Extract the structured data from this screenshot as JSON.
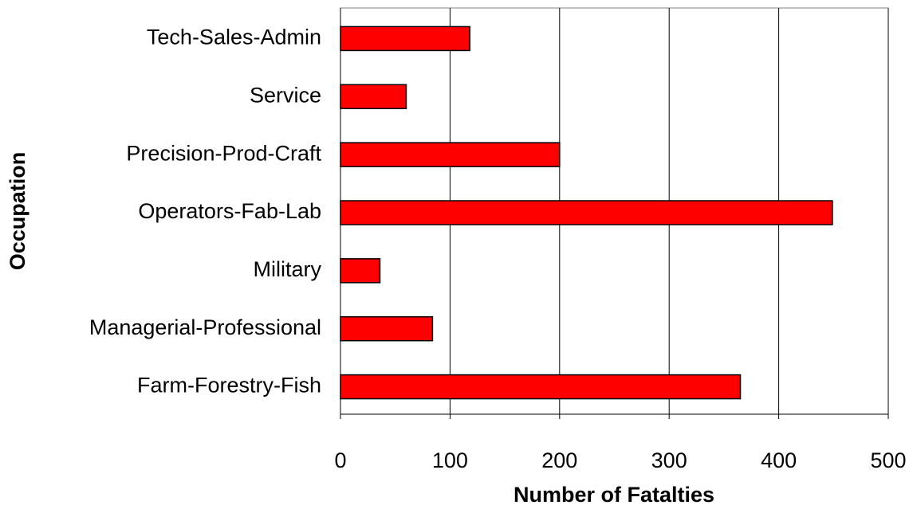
{
  "chart_data": {
    "type": "bar",
    "orientation": "horizontal",
    "x_label": "Number of Fatalties",
    "y_label": "Occupation",
    "categories": [
      "Tech-Sales-Admin",
      "Service",
      "Precision-Prod-Craft",
      "Operators-Fab-Lab",
      "Military",
      "Managerial-Professional",
      "Farm-Forestry-Fish"
    ],
    "values": [
      118,
      60,
      200,
      449,
      36,
      84,
      365
    ],
    "color": "#ff0000",
    "xlim": [
      0,
      500
    ],
    "xticks": [
      0,
      100,
      200,
      300,
      400,
      500
    ],
    "grid": true
  }
}
